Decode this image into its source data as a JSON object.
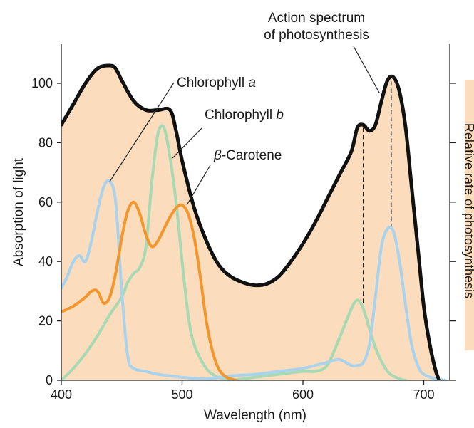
{
  "chart_data": {
    "type": "line",
    "title": "",
    "xlabel": "Wavelength (nm)",
    "ylabel": "Absorption of light",
    "y2label": "Relative rate of photosynthesis",
    "xlim": [
      400,
      720
    ],
    "ylim": [
      0,
      110
    ],
    "xticks": [
      "400",
      "500",
      "600",
      "700"
    ],
    "yticks": [
      "0",
      "20",
      "40",
      "60",
      "80",
      "100"
    ],
    "grid": false,
    "series": [
      {
        "name": "Action spectrum of photosynthesis",
        "color": "#111111",
        "filled": true,
        "fill_color": "#fbdcbd",
        "x": [
          400,
          410,
          420,
          430,
          440,
          445,
          450,
          460,
          470,
          480,
          490,
          495,
          500,
          510,
          520,
          530,
          540,
          550,
          560,
          570,
          580,
          590,
          600,
          610,
          620,
          630,
          640,
          645,
          650,
          655,
          660,
          665,
          670,
          675,
          680,
          685,
          690,
          695,
          700,
          705,
          710,
          713
        ],
        "y": [
          86,
          93,
          100,
          105,
          106,
          105,
          101,
          94,
          91,
          91,
          91,
          84,
          74,
          58,
          47,
          39,
          35,
          33,
          32,
          32.5,
          35,
          40,
          46,
          53,
          61,
          69,
          77,
          85,
          86,
          84,
          86,
          94,
          101,
          102,
          97,
          85,
          65,
          45,
          25,
          12,
          3,
          0
        ]
      },
      {
        "name": "Chlorophyll a",
        "color": "#a9d3ec",
        "x": [
          400,
          405,
          410,
          415,
          420,
          425,
          430,
          435,
          440,
          445,
          450,
          455,
          460,
          470,
          480,
          490,
          500,
          520,
          540,
          560,
          580,
          600,
          610,
          620,
          630,
          640,
          645,
          650,
          655,
          660,
          665,
          670,
          675,
          680,
          685,
          690,
          695,
          700,
          710,
          718
        ],
        "y": [
          31,
          35,
          40,
          42,
          40,
          47,
          57,
          65,
          67,
          60,
          30,
          8,
          4,
          3,
          2,
          1.5,
          1,
          0.5,
          1.5,
          2,
          3,
          4,
          5,
          6,
          7,
          5,
          5,
          6,
          12,
          28,
          45,
          51,
          50,
          40,
          25,
          12,
          5,
          2,
          0.5,
          0
        ]
      },
      {
        "name": "Chlorophyll b",
        "color": "#a7d9b3",
        "x": [
          400,
          410,
          420,
          430,
          440,
          450,
          455,
          460,
          465,
          470,
          475,
          480,
          485,
          490,
          495,
          500,
          505,
          510,
          520,
          530,
          540,
          560,
          580,
          600,
          610,
          620,
          630,
          640,
          645,
          650,
          660,
          670,
          680,
          685
        ],
        "y": [
          0,
          4,
          9,
          15,
          22,
          28,
          33,
          36,
          38,
          45,
          67,
          83,
          85,
          75,
          60,
          40,
          22,
          12,
          4,
          1,
          0,
          1,
          2,
          3,
          3,
          5,
          14,
          24,
          27,
          24,
          11,
          3,
          0.5,
          0
        ]
      },
      {
        "name": "β-Carotene",
        "color": "#f3962d",
        "x": [
          400,
          410,
          420,
          425,
          430,
          435,
          440,
          445,
          450,
          455,
          460,
          465,
          470,
          475,
          480,
          485,
          490,
          495,
          500,
          505,
          510,
          515,
          520,
          525,
          530,
          535,
          540,
          545
        ],
        "y": [
          23,
          25,
          28,
          30,
          30,
          26,
          28,
          36,
          48,
          57,
          60,
          56,
          49,
          45,
          47,
          51,
          55,
          58,
          59,
          56,
          48,
          35,
          20,
          10,
          4,
          1.5,
          0.5,
          0
        ]
      }
    ],
    "annotations": [
      {
        "text_parts": [
          "Chlorophyll ",
          "a"
        ],
        "series": "Chlorophyll a"
      },
      {
        "text_parts": [
          "Chlorophyll ",
          "b"
        ],
        "series": "Chlorophyll b"
      },
      {
        "text_parts": [
          "β",
          "-Carotene"
        ],
        "series": "β-Carotene"
      },
      {
        "text_lines": [
          "Action spectrum",
          "of photosynthesis"
        ],
        "series": "Action spectrum of photosynthesis"
      }
    ],
    "reference_lines": [
      {
        "type": "vertical-dashed",
        "x": 650
      },
      {
        "type": "vertical-dashed",
        "x": 673
      }
    ]
  }
}
